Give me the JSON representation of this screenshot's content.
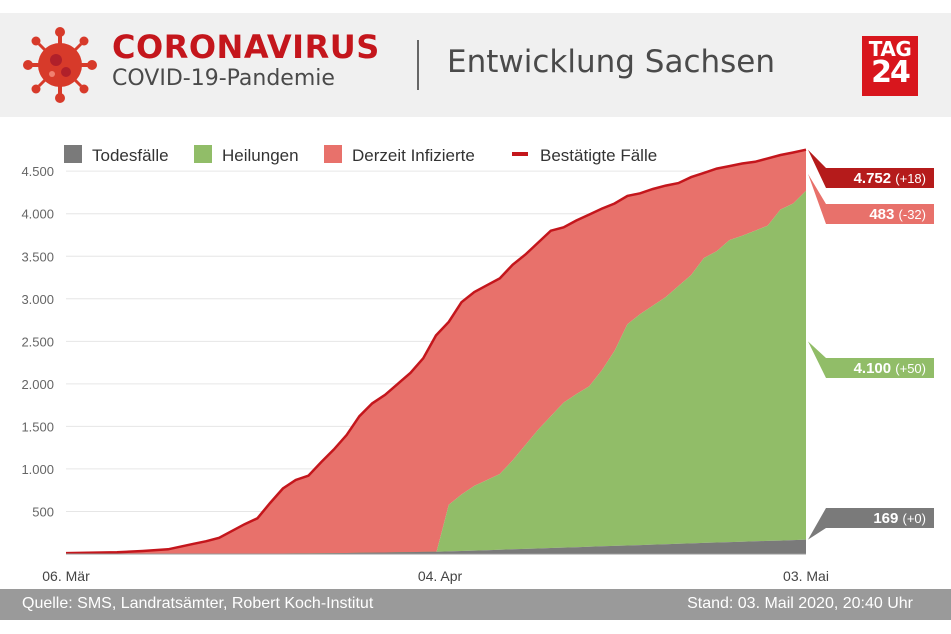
{
  "header": {
    "title": "CORONAVIRUS",
    "subtitle": "COVID-19-Pandemie",
    "region": "Entwicklung Sachsen",
    "logo_top": "TAG",
    "logo_bottom": "24"
  },
  "colors": {
    "death": "#7a7a7a",
    "recovered": "#91bd68",
    "infected": "#e8716b",
    "confirmed": "#c4161c",
    "confirmed_tag": "#b51b1b",
    "infected_tag": "#e8716b",
    "recovered_tag": "#91bd68",
    "death_tag": "#7a7a7a"
  },
  "chart_data": {
    "type": "area",
    "legend": [
      {
        "name": "Todesfälle",
        "color": "#7a7a7a",
        "kind": "square"
      },
      {
        "name": "Heilungen",
        "color": "#91bd68",
        "kind": "square"
      },
      {
        "name": "Derzeit Infizierte",
        "color": "#e8716b",
        "kind": "square"
      },
      {
        "name": "Bestätigte Fälle",
        "color": "#c4161c",
        "kind": "line"
      }
    ],
    "legend_position": "top",
    "x_ticks": [
      "06. Mär",
      "04. Apr",
      "03. Mai"
    ],
    "x_start": "06. Mär",
    "x_end": "03. Mai",
    "ylim": [
      0,
      4750
    ],
    "y_ticks": [
      "4.500",
      "4.000",
      "3.500",
      "3.000",
      "2.500",
      "2.000",
      "1.500",
      "1.000",
      "500"
    ],
    "grid": true,
    "confirmed": [
      [
        0,
        10
      ],
      [
        4,
        20
      ],
      [
        6,
        35
      ],
      [
        8,
        55
      ],
      [
        10,
        120
      ],
      [
        11,
        150
      ],
      [
        12,
        190
      ],
      [
        14,
        350
      ],
      [
        15,
        420
      ],
      [
        16,
        600
      ],
      [
        17,
        770
      ],
      [
        18,
        870
      ],
      [
        19,
        920
      ],
      [
        20,
        1080
      ],
      [
        21,
        1230
      ],
      [
        22,
        1400
      ],
      [
        23,
        1620
      ],
      [
        24,
        1770
      ],
      [
        25,
        1870
      ],
      [
        26,
        2000
      ],
      [
        27,
        2130
      ],
      [
        28,
        2300
      ],
      [
        29,
        2570
      ],
      [
        30,
        2730
      ],
      [
        31,
        2960
      ],
      [
        32,
        3080
      ],
      [
        33,
        3160
      ],
      [
        34,
        3240
      ],
      [
        35,
        3400
      ],
      [
        36,
        3520
      ],
      [
        37,
        3660
      ],
      [
        38,
        3800
      ],
      [
        39,
        3840
      ],
      [
        40,
        3920
      ],
      [
        41,
        3990
      ],
      [
        42,
        4060
      ],
      [
        43,
        4120
      ],
      [
        44,
        4210
      ],
      [
        45,
        4240
      ],
      [
        46,
        4290
      ],
      [
        47,
        4330
      ],
      [
        48,
        4360
      ],
      [
        49,
        4430
      ],
      [
        50,
        4480
      ],
      [
        51,
        4530
      ],
      [
        52,
        4560
      ],
      [
        53,
        4590
      ],
      [
        54,
        4610
      ],
      [
        55,
        4650
      ],
      [
        56,
        4690
      ],
      [
        57,
        4720
      ],
      [
        58,
        4752
      ]
    ],
    "recovered_plus_deaths": [
      [
        0,
        0
      ],
      [
        29,
        0
      ],
      [
        30,
        580
      ],
      [
        31,
        700
      ],
      [
        32,
        800
      ],
      [
        33,
        870
      ],
      [
        34,
        940
      ],
      [
        35,
        1100
      ],
      [
        36,
        1280
      ],
      [
        37,
        1460
      ],
      [
        38,
        1620
      ],
      [
        39,
        1780
      ],
      [
        40,
        1880
      ],
      [
        41,
        1970
      ],
      [
        42,
        2160
      ],
      [
        43,
        2390
      ],
      [
        44,
        2700
      ],
      [
        45,
        2820
      ],
      [
        46,
        2920
      ],
      [
        47,
        3020
      ],
      [
        48,
        3150
      ],
      [
        49,
        3280
      ],
      [
        50,
        3480
      ],
      [
        51,
        3560
      ],
      [
        52,
        3690
      ],
      [
        53,
        3740
      ],
      [
        54,
        3800
      ],
      [
        55,
        3860
      ],
      [
        56,
        4050
      ],
      [
        57,
        4120
      ],
      [
        58,
        4269
      ]
    ],
    "deaths": [
      [
        0,
        0
      ],
      [
        10,
        2
      ],
      [
        20,
        8
      ],
      [
        25,
        18
      ],
      [
        30,
        30
      ],
      [
        33,
        45
      ],
      [
        35,
        55
      ],
      [
        38,
        70
      ],
      [
        40,
        80
      ],
      [
        43,
        95
      ],
      [
        46,
        110
      ],
      [
        50,
        130
      ],
      [
        53,
        145
      ],
      [
        56,
        158
      ],
      [
        58,
        169
      ]
    ],
    "end_labels": [
      {
        "value": "4.752",
        "delta": "(+18)",
        "series": "confirmed"
      },
      {
        "value": "483",
        "delta": "(-32)",
        "series": "infected"
      },
      {
        "value": "4.100",
        "delta": "(+50)",
        "series": "recovered"
      },
      {
        "value": "169",
        "delta": "(+0)",
        "series": "deaths"
      }
    ]
  },
  "footer": {
    "source": "Quelle: SMS, Landratsämter, Robert Koch-Institut",
    "stand": "Stand: 03. Mail 2020, 20:40 Uhr"
  }
}
